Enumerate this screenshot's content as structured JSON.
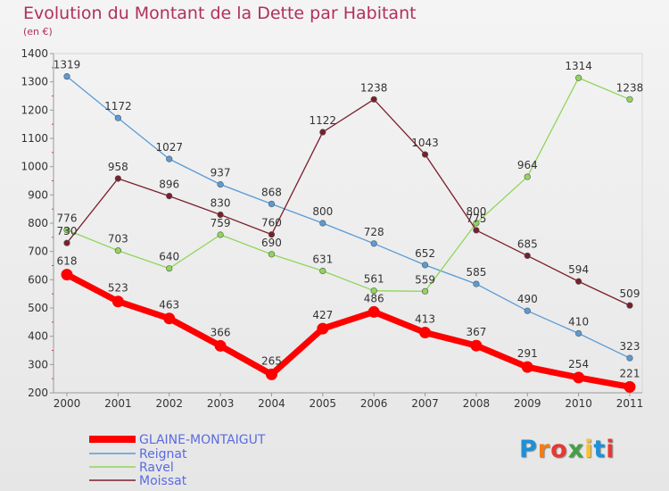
{
  "chart_data": {
    "type": "line",
    "title": "Evolution du Montant de la Dette par Habitant",
    "subtitle": "(en €)",
    "x": [
      "2000",
      "2001",
      "2002",
      "2003",
      "2004",
      "2005",
      "2006",
      "2007",
      "2008",
      "2009",
      "2010",
      "2011"
    ],
    "ylim": [
      200,
      1400
    ],
    "yticks": [
      200,
      300,
      400,
      500,
      600,
      700,
      800,
      900,
      1000,
      1100,
      1200,
      1300,
      1400
    ],
    "grid": false,
    "legend_position": "bottom-left",
    "series": [
      {
        "name": "GLAINE-MONTAIGUT",
        "color": "#ff0000",
        "values": [
          618,
          523,
          463,
          366,
          265,
          427,
          486,
          413,
          367,
          291,
          254,
          221
        ]
      },
      {
        "name": "Reignat",
        "color": "#5b9bd5",
        "values": [
          1319,
          1172,
          1027,
          937,
          868,
          800,
          728,
          652,
          585,
          490,
          410,
          323
        ]
      },
      {
        "name": "Ravel",
        "color": "#8fd65a",
        "values": [
          776,
          703,
          640,
          759,
          690,
          631,
          561,
          559,
          800,
          964,
          1314,
          1238
        ]
      },
      {
        "name": "Moissat",
        "color": "#7a1f2b",
        "values": [
          730,
          958,
          896,
          830,
          760,
          1122,
          1238,
          1043,
          775,
          685,
          594,
          509
        ]
      }
    ]
  },
  "brand": {
    "text": "Proxiti",
    "letters": [
      "P",
      "r",
      "o",
      "x",
      "i",
      "t",
      "i"
    ],
    "colors": [
      "#1e90d6",
      "#f07d1a",
      "#e53935",
      "#43a047",
      "#fbc02d",
      "#1e90d6",
      "#e53935"
    ]
  }
}
